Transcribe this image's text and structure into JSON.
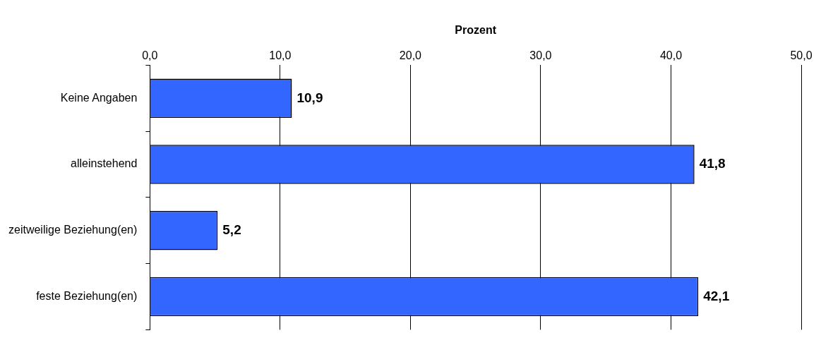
{
  "chart_data": {
    "type": "bar",
    "orientation": "horizontal",
    "xlabel": "Prozent",
    "categories": [
      "Keine Angaben",
      "alleinstehend",
      "zeitweilige Beziehung(en)",
      "feste Beziehung(en)"
    ],
    "values": [
      10.9,
      41.8,
      5.2,
      42.1
    ],
    "value_labels": [
      "10,9",
      "41,8",
      "5,2",
      "42,1"
    ],
    "color": "#3366ff",
    "xlim": [
      0,
      50
    ],
    "xticks": [
      {
        "value": 0,
        "label": "0,0"
      },
      {
        "value": 10,
        "label": "10,0"
      },
      {
        "value": 20,
        "label": "20,0"
      },
      {
        "value": 30,
        "label": "30,0"
      },
      {
        "value": 40,
        "label": "40,0"
      },
      {
        "value": 50,
        "label": "50,0"
      }
    ],
    "grid": "x",
    "legend": false
  }
}
